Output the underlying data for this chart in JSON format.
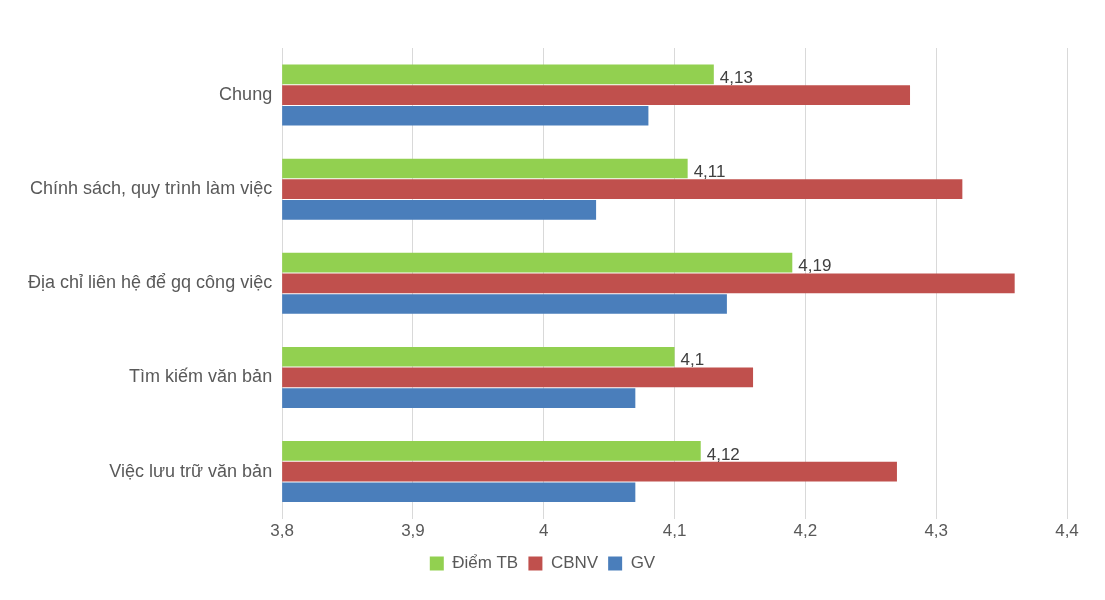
{
  "chart_data": {
    "type": "bar",
    "orientation": "horizontal",
    "categories": [
      "Chung",
      "Chính sách, quy trình làm việc",
      "Địa chỉ liên hệ để gq công việc",
      "Tìm kiếm văn bản",
      "Việc lưu trữ văn bản"
    ],
    "series": [
      {
        "name": "Điểm TB",
        "color": "#92d050",
        "values": [
          4.13,
          4.11,
          4.19,
          4.1,
          4.12
        ],
        "value_labels": [
          "4,13",
          "4,11",
          "4,19",
          "4,1",
          "4,12"
        ]
      },
      {
        "name": "CBNV",
        "color": "#c0504d",
        "values": [
          4.28,
          4.32,
          4.36,
          4.16,
          4.27
        ]
      },
      {
        "name": "GV",
        "color": "#4a7ebb",
        "values": [
          4.08,
          4.04,
          4.14,
          4.07,
          4.07
        ]
      }
    ],
    "xlim": [
      3.8,
      4.4
    ],
    "xticks": [
      {
        "value": 3.8,
        "label": "3,8"
      },
      {
        "value": 3.9,
        "label": "3,9"
      },
      4,
      {
        "value": 4.1,
        "label": "4,1"
      },
      {
        "value": 4.2,
        "label": "4,2"
      },
      {
        "value": 4.3,
        "label": "4,3"
      },
      {
        "value": 4.4,
        "label": "4,4"
      }
    ],
    "grid": "x",
    "legend": "bottom"
  }
}
